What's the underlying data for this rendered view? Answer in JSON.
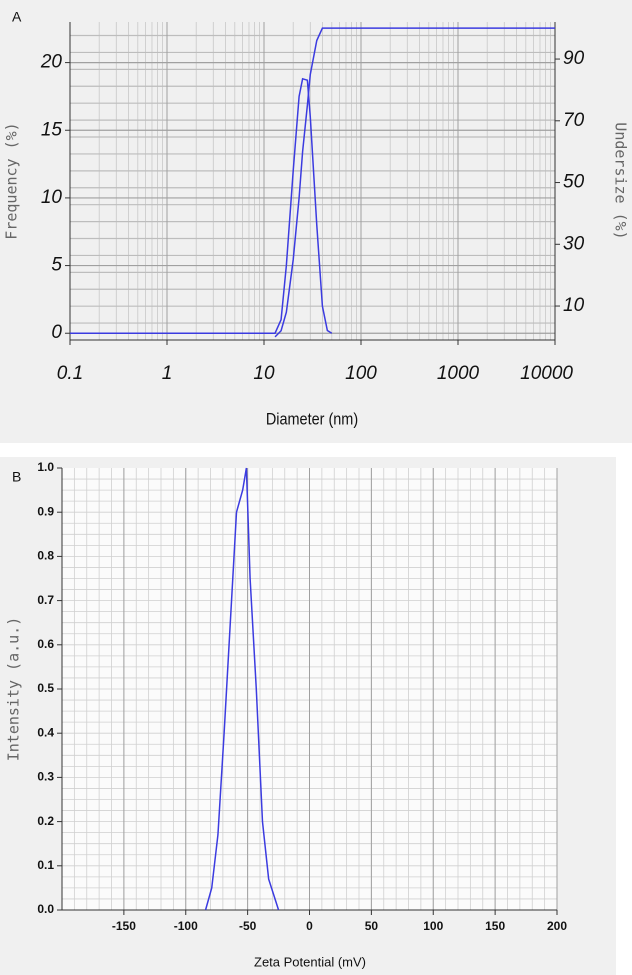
{
  "chart_data": [
    {
      "type": "line",
      "panel_label": "A",
      "x_label": "Diameter (nm)",
      "y_label": "Frequency (%)",
      "y2_label": "Undersize (%)",
      "x_log": true,
      "grid": true,
      "xlim": [
        0.1,
        10000
      ],
      "xticks": [
        0.1,
        1,
        10,
        100,
        1000,
        10000
      ],
      "ylim": [
        -0.5,
        23
      ],
      "yticks": [
        0,
        5,
        10,
        15,
        20
      ],
      "y2lim": [
        -1,
        102
      ],
      "y2ticks": [
        10,
        30,
        50,
        70,
        90
      ],
      "series": [
        {
          "color": "#3b3be0",
          "x": [
            0.1,
            0.3,
            13,
            15,
            17,
            20,
            23,
            25,
            28,
            30,
            35,
            40,
            45,
            50
          ],
          "values": [
            0,
            0,
            0,
            1,
            5,
            12,
            17.5,
            18.8,
            18.7,
            16,
            8,
            2,
            0.2,
            0
          ]
        },
        {
          "color": "#3b3be0",
          "axis": "y2",
          "x": [
            13,
            15,
            17,
            20,
            23,
            25,
            28,
            30,
            35,
            40,
            10000
          ],
          "values": [
            0,
            2,
            8,
            25,
            45,
            60,
            75,
            85,
            96,
            100,
            100
          ]
        }
      ]
    },
    {
      "type": "line",
      "panel_label": "B",
      "x_label": "Zeta Potential (mV)",
      "y_label": "Intensity (a.u.)",
      "x_log": false,
      "grid": true,
      "xlim": [
        -200,
        200
      ],
      "xticks": [
        -150,
        -100,
        -50,
        0,
        50,
        100,
        150,
        200
      ],
      "ylim": [
        0,
        1
      ],
      "yticks": [
        {
          "value": 0,
          "label": "0.0"
        },
        0.1,
        0.2,
        0.3,
        0.4,
        0.5,
        0.6,
        0.7,
        0.8,
        0.9,
        {
          "value": 1,
          "label": "1.0"
        }
      ],
      "series": [
        {
          "color": "#3b3be0",
          "x": [
            -84,
            -79,
            -74,
            -69,
            -64,
            -59,
            -54,
            -51,
            -48,
            -43,
            -38,
            -33,
            -25
          ],
          "values": [
            0,
            0.05,
            0.17,
            0.4,
            0.65,
            0.9,
            0.95,
            1.0,
            0.75,
            0.5,
            0.2,
            0.07,
            0
          ]
        }
      ]
    }
  ]
}
